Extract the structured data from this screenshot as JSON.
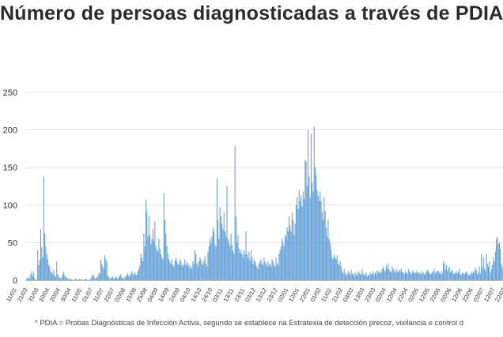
{
  "title": "Número de persoas diagnosticadas a través de PDIA",
  "footnote": "* PDIA = Probas Diagnósticas de Infección Activa, segundo se establece na Estratexia de detección precoz, vixilancia e control d",
  "colors": {
    "bar": "#5b9bd5",
    "grid": "#e6e6e6",
    "axis": "#bdbdbd",
    "text": "#333333"
  },
  "chart_data": {
    "type": "bar",
    "title": "Número de persoas diagnosticadas a través de PDIA",
    "xlabel": "",
    "ylabel": "",
    "ylim": [
      0,
      250
    ],
    "yticks": [
      0,
      50,
      100,
      150,
      200,
      250
    ],
    "grid": true,
    "series": [
      {
        "values": [
          0,
          2,
          4,
          3,
          2,
          8,
          12,
          5,
          10,
          3,
          0,
          1,
          40,
          20,
          27,
          68,
          44,
          30,
          138,
          62,
          45,
          35,
          28,
          20,
          18,
          12,
          10,
          8,
          14,
          6,
          4,
          25,
          8,
          5,
          3,
          2,
          4,
          8,
          11,
          6,
          5,
          3,
          2,
          2,
          1,
          2,
          1,
          0,
          1,
          0,
          2,
          1,
          0,
          1,
          2,
          1,
          0,
          1,
          0,
          2,
          1,
          1,
          0,
          0,
          1,
          2,
          5,
          8,
          6,
          3,
          2,
          4,
          5,
          10,
          8,
          27,
          22,
          18,
          15,
          33,
          28,
          25,
          6,
          4,
          2,
          3,
          4,
          5,
          2,
          3,
          5,
          3,
          2,
          4,
          6,
          8,
          4,
          3,
          2,
          4,
          5,
          7,
          9,
          6,
          5,
          8,
          12,
          9,
          6,
          10,
          8,
          7,
          12,
          15,
          20,
          35,
          30,
          25,
          62,
          45,
          107,
          92,
          58,
          85,
          60,
          48,
          55,
          68,
          52,
          78,
          45,
          40,
          38,
          55,
          42,
          35,
          30,
          28,
          116,
          80,
          62,
          45,
          35,
          28,
          25,
          22,
          28,
          20,
          18,
          26,
          30,
          25,
          22,
          20,
          28,
          25,
          20,
          18,
          22,
          28,
          20,
          24,
          22,
          18,
          20,
          15,
          17,
          25,
          22,
          40,
          35,
          22,
          18,
          25,
          30,
          28,
          22,
          20,
          26,
          32,
          22,
          18,
          38,
          45,
          55,
          50,
          58,
          70,
          65,
          48,
          45,
          135,
          80,
          55,
          97,
          85,
          75,
          68,
          90,
          65,
          58,
          125,
          55,
          50,
          45,
          62,
          48,
          40,
          35,
          178,
          85,
          50,
          60,
          42,
          36,
          40,
          35,
          30,
          40,
          34,
          65,
          35,
          30,
          38,
          26,
          40,
          30,
          22,
          28,
          25,
          20,
          18,
          15,
          22,
          25,
          28,
          22,
          20,
          30,
          25,
          22,
          18,
          25,
          20,
          22,
          18,
          28,
          25,
          20,
          18,
          30,
          22,
          20,
          35,
          40,
          45,
          55,
          50,
          45,
          60,
          58,
          70,
          65,
          85,
          72,
          65,
          90,
          80,
          60,
          75,
          100,
          110,
          95,
          120,
          105,
          112,
          98,
          118,
          108,
          160,
          158,
          125,
          200,
          138,
          110,
          195,
          130,
          118,
          205,
          150,
          140,
          120,
          113,
          105,
          118,
          105,
          90,
          80,
          110,
          92,
          70,
          58,
          80,
          55,
          50,
          40,
          30,
          28,
          34,
          30,
          28,
          33,
          22,
          20,
          25,
          18,
          12,
          9,
          15,
          10,
          6,
          8,
          12,
          10,
          7,
          14,
          9,
          8,
          5,
          10,
          8,
          6,
          12,
          10,
          8,
          7,
          15,
          9,
          6,
          8,
          10,
          5,
          7,
          6,
          10,
          8,
          9,
          12,
          7,
          10,
          8,
          13,
          11,
          9,
          12,
          10,
          15,
          18,
          14,
          12,
          20,
          16,
          22,
          14,
          12,
          10,
          18,
          15,
          12,
          10,
          15,
          12,
          10,
          14,
          12,
          16,
          11,
          10,
          8,
          12,
          10,
          9,
          15,
          12,
          10,
          8,
          13,
          11,
          9,
          10,
          12,
          9,
          11,
          10,
          9,
          8,
          12,
          10,
          7,
          9,
          11,
          14,
          12,
          10,
          8,
          9,
          12,
          10,
          15,
          9,
          11,
          12,
          13,
          10,
          8,
          12,
          9,
          25,
          22,
          14,
          20,
          12,
          15,
          18,
          10,
          12,
          14,
          9,
          8,
          10,
          12,
          9,
          11,
          15,
          8,
          7,
          10,
          9,
          8,
          10,
          12,
          9,
          7,
          6,
          8,
          11,
          9,
          12,
          10,
          16,
          14,
          8,
          10,
          18,
          9,
          35,
          18,
          30,
          15,
          12,
          35,
          22,
          18,
          25,
          10,
          15,
          20,
          30,
          25,
          38,
          55,
          58,
          48,
          50,
          42,
          22,
          17
        ]
      }
    ],
    "x_tick_labels": [
      "11/03",
      "21/03",
      "31/03",
      "10/04",
      "20/04",
      "30/04",
      "11/05",
      "01/07",
      "11/07",
      "22/07",
      "02/08",
      "15/08",
      "25/08",
      "04/09",
      "14/09",
      "24/09",
      "04/10",
      "14/10",
      "24/10",
      "03/11",
      "13/11",
      "23/11",
      "03/12",
      "13/12",
      "23/12",
      "02/01",
      "12/01",
      "22/01",
      "01/02",
      "11/02",
      "21/02",
      "03/03",
      "13/03",
      "23/03",
      "02/04",
      "12/04",
      "22/04",
      "02/05",
      "12/05",
      "22/05",
      "02/06",
      "12/06",
      "22/06",
      "02/07",
      "12/07",
      "22/07"
    ]
  }
}
